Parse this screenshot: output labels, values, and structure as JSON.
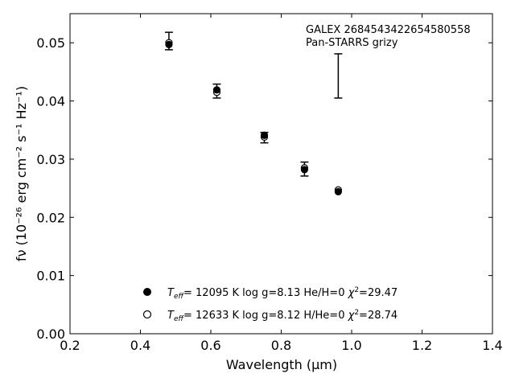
{
  "chart_data": {
    "type": "scatter",
    "annotation_lines": [
      "GALEX 2684543422654580558",
      "Pan-STARRS grizy"
    ],
    "xlabel": "Wavelength (μm)",
    "ylabel": "fν (10⁻²⁶ erg cm⁻² s⁻¹ Hz⁻¹)",
    "xlim": [
      0.2,
      1.4
    ],
    "ylim": [
      0.0,
      0.055
    ],
    "xticks": [
      0.2,
      0.4,
      0.6,
      0.8,
      1.0,
      1.2,
      1.4
    ],
    "xtick_labels": [
      "0.2",
      "0.4",
      "0.6",
      "0.8",
      "1.0",
      "1.2",
      "1.4"
    ],
    "yticks": [
      0.0,
      0.01,
      0.02,
      0.03,
      0.04,
      0.05
    ],
    "ytick_labels": [
      "0.00",
      "0.01",
      "0.02",
      "0.03",
      "0.04",
      "0.05"
    ],
    "grid": false,
    "legend_position": "bottom-center",
    "observed": [
      {
        "x": 0.481,
        "y": 0.0503,
        "err": 0.0015
      },
      {
        "x": 0.617,
        "y": 0.0417,
        "err": 0.0012
      },
      {
        "x": 0.752,
        "y": 0.0337,
        "err": 0.0009
      },
      {
        "x": 0.866,
        "y": 0.0283,
        "err": 0.0012
      },
      {
        "x": 0.962,
        "y": 0.0443,
        "err": 0.0038
      }
    ],
    "series": [
      {
        "name": "Teff= 12095 K  log g=8.13  He/H=0  χ²=29.47",
        "marker": "filled",
        "x": [
          0.481,
          0.617,
          0.752,
          0.866,
          0.962
        ],
        "y": [
          0.0497,
          0.0419,
          0.0341,
          0.0282,
          0.0244
        ]
      },
      {
        "name": "Teff= 12633 K  log g=8.12  H/He=0  χ²=28.74",
        "marker": "open",
        "x": [
          0.481,
          0.617,
          0.752,
          0.866,
          0.962
        ],
        "y": [
          0.05,
          0.0415,
          0.0338,
          0.0285,
          0.0247
        ]
      }
    ],
    "legend": [
      {
        "teff": "12095",
        "logg": "8.13",
        "comp": "He/H=0",
        "chi2": "29.47"
      },
      {
        "teff": "12633",
        "logg": "8.12",
        "comp": "H/He=0",
        "chi2": "28.74"
      }
    ],
    "colors": {
      "marker": "#000000",
      "axes": "#000000",
      "background": "#ffffff"
    }
  }
}
